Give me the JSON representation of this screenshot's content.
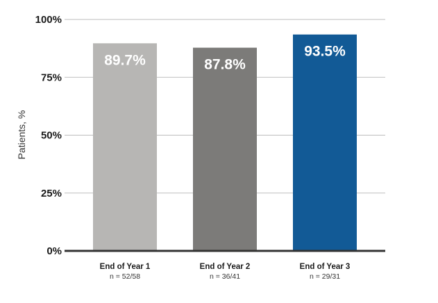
{
  "chart_data": {
    "type": "bar",
    "ylabel": "Patients, %",
    "ylim": [
      0,
      100
    ],
    "yticks": [
      0,
      25,
      50,
      75,
      100
    ],
    "ytick_labels": [
      "0%",
      "25%",
      "50%",
      "75%",
      "100%"
    ],
    "grid": true,
    "categories": [
      "End of Year 1",
      "End of Year 2",
      "End of Year 3"
    ],
    "subtitles": [
      "n = 52/58",
      "n = 36/41",
      "n = 29/31"
    ],
    "values": [
      89.7,
      87.8,
      93.5
    ],
    "data_labels": [
      "89.7%",
      "87.8%",
      "93.5%"
    ],
    "colors": [
      "#b7b6b4",
      "#7c7b79",
      "#125a96"
    ]
  }
}
